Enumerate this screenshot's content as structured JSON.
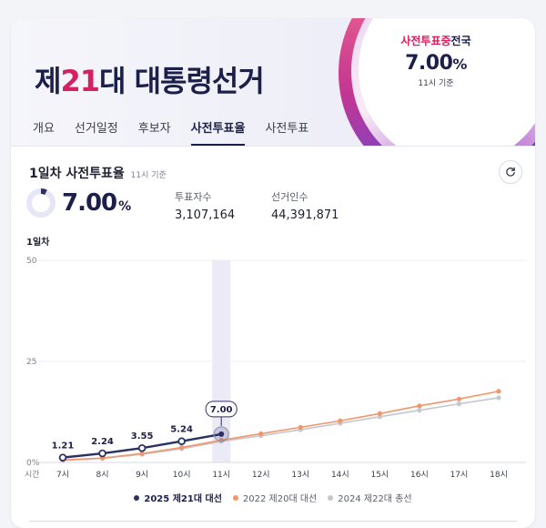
{
  "header": {
    "title_prefix": "제",
    "title_num": "21",
    "title_suffix": "대 대통령선거",
    "badge_label_pink": "사전투표중",
    "badge_label_dark": "전국",
    "badge_value": "7.00",
    "badge_unit": "%",
    "badge_time": "11시 기준"
  },
  "tabs": [
    {
      "label": "개요"
    },
    {
      "label": "선거일정"
    },
    {
      "label": "후보자"
    },
    {
      "label": "사전투표율"
    },
    {
      "label": "사전투표"
    }
  ],
  "active_tab": 3,
  "summary": {
    "title": "1일차 사전투표율",
    "time": "11시 기준",
    "value": "7.00",
    "unit": "%",
    "rate": 7.0,
    "voters_label": "투표자수",
    "voters_value": "3,107,164",
    "electors_label": "선거인수",
    "electors_value": "44,391,871"
  },
  "icons": {
    "refresh": "refresh-icon"
  },
  "colors": {
    "navy": "#2b3163",
    "orange": "#f2956a",
    "gray": "#c5c7cf",
    "accent": "#d81f5f",
    "highlight": "#eceaf7"
  },
  "chart_data": {
    "type": "line",
    "ylabel": "1일차",
    "xlabel": "시간",
    "y_ticks": [
      "50",
      "25",
      "0%"
    ],
    "ylim": [
      0,
      50
    ],
    "categories": [
      "7시",
      "8시",
      "9시",
      "10시",
      "11시",
      "12시",
      "13시",
      "14시",
      "15시",
      "16시",
      "17시",
      "18시"
    ],
    "highlight_category": "11시",
    "series": [
      {
        "name": "2025 제21대 대선",
        "color": "#2b3163",
        "values": [
          1.21,
          2.24,
          3.55,
          5.24,
          7.0,
          null,
          null,
          null,
          null,
          null,
          null,
          null
        ],
        "labels": [
          "1.21",
          "2.24",
          "3.55",
          "5.24",
          "7.00"
        ]
      },
      {
        "name": "2022 제20대 대선",
        "color": "#f2956a",
        "values": [
          0.6,
          1.1,
          2.2,
          3.7,
          5.5,
          7.1,
          8.7,
          10.3,
          12.1,
          14.0,
          15.7,
          17.6
        ]
      },
      {
        "name": "2024 제22대 총선",
        "color": "#c5c7cf",
        "values": [
          0.5,
          1.0,
          2.0,
          3.4,
          5.2,
          6.6,
          8.1,
          9.7,
          11.3,
          12.9,
          14.5,
          16.0
        ]
      }
    ],
    "legend_position": "bottom-center",
    "grid": true
  }
}
